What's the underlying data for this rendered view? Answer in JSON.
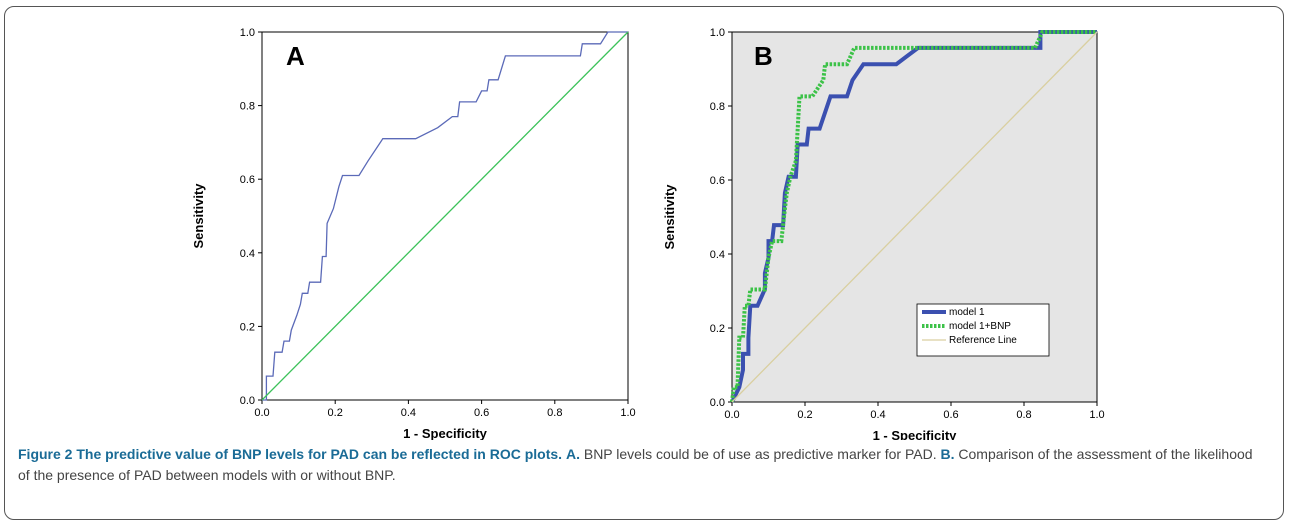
{
  "chart_data": [
    {
      "type": "line",
      "panel_label": "A",
      "xlabel": "1 - Specificity",
      "ylabel": "Sensitivity",
      "xlim": [
        0,
        1
      ],
      "ylim": [
        0,
        1
      ],
      "x_ticks": [
        "0.0",
        "0.2",
        "0.4",
        "0.6",
        "0.8",
        "1.0"
      ],
      "y_ticks": [
        "0.0",
        "0.2",
        "0.4",
        "0.6",
        "0.8",
        "1.0"
      ],
      "background": "#ffffff",
      "series": [
        {
          "color": "#5b6ab8",
          "points": [
            [
              0,
              0
            ],
            [
              0.012,
              0
            ],
            [
              0.012,
              0.065
            ],
            [
              0.03,
              0.065
            ],
            [
              0.035,
              0.13
            ],
            [
              0.055,
              0.13
            ],
            [
              0.06,
              0.16
            ],
            [
              0.075,
              0.16
            ],
            [
              0.08,
              0.19
            ],
            [
              0.095,
              0.23
            ],
            [
              0.105,
              0.26
            ],
            [
              0.11,
              0.29
            ],
            [
              0.125,
              0.29
            ],
            [
              0.13,
              0.32
            ],
            [
              0.16,
              0.32
            ],
            [
              0.165,
              0.39
            ],
            [
              0.175,
              0.39
            ],
            [
              0.178,
              0.48
            ],
            [
              0.195,
              0.52
            ],
            [
              0.21,
              0.58
            ],
            [
              0.22,
              0.61
            ],
            [
              0.265,
              0.61
            ],
            [
              0.29,
              0.65
            ],
            [
              0.33,
              0.71
            ],
            [
              0.42,
              0.71
            ],
            [
              0.48,
              0.74
            ],
            [
              0.52,
              0.77
            ],
            [
              0.535,
              0.77
            ],
            [
              0.54,
              0.81
            ],
            [
              0.585,
              0.81
            ],
            [
              0.6,
              0.84
            ],
            [
              0.615,
              0.84
            ],
            [
              0.62,
              0.87
            ],
            [
              0.645,
              0.87
            ],
            [
              0.665,
              0.935
            ],
            [
              0.87,
              0.935
            ],
            [
              0.875,
              0.968
            ],
            [
              0.925,
              0.968
            ],
            [
              0.945,
              1.0
            ],
            [
              1.0,
              1.0
            ]
          ]
        },
        {
          "color": "#3cc25a",
          "points": [
            [
              0,
              0
            ],
            [
              1,
              1
            ]
          ]
        }
      ]
    },
    {
      "type": "line",
      "panel_label": "B",
      "xlabel": "1 - Specificity",
      "ylabel": "Sensitivity",
      "xlim": [
        0,
        1
      ],
      "ylim": [
        0,
        1
      ],
      "x_ticks": [
        "0.0",
        "0.2",
        "0.4",
        "0.6",
        "0.8",
        "1.0"
      ],
      "y_ticks": [
        "0.0",
        "0.2",
        "0.4",
        "0.6",
        "0.8",
        "1.0"
      ],
      "background": "#e5e5e5",
      "legend_placement": "bottom-right",
      "series": [
        {
          "name": "model 1",
          "color": "#3b50b0",
          "dash": "solid",
          "points": [
            [
              0,
              0
            ],
            [
              0.02,
              0.04
            ],
            [
              0.03,
              0.087
            ],
            [
              0.03,
              0.13
            ],
            [
              0.045,
              0.13
            ],
            [
              0.045,
              0.174
            ],
            [
              0.05,
              0.26
            ],
            [
              0.07,
              0.26
            ],
            [
              0.09,
              0.305
            ],
            [
              0.09,
              0.348
            ],
            [
              0.1,
              0.39
            ],
            [
              0.1,
              0.435
            ],
            [
              0.11,
              0.435
            ],
            [
              0.115,
              0.478
            ],
            [
              0.14,
              0.478
            ],
            [
              0.145,
              0.565
            ],
            [
              0.155,
              0.609
            ],
            [
              0.175,
              0.609
            ],
            [
              0.18,
              0.696
            ],
            [
              0.205,
              0.696
            ],
            [
              0.21,
              0.739
            ],
            [
              0.24,
              0.739
            ],
            [
              0.27,
              0.826
            ],
            [
              0.315,
              0.826
            ],
            [
              0.33,
              0.87
            ],
            [
              0.36,
              0.913
            ],
            [
              0.45,
              0.913
            ],
            [
              0.48,
              0.935
            ],
            [
              0.51,
              0.957
            ],
            [
              0.535,
              0.957
            ],
            [
              0.545,
              0.957
            ],
            [
              0.845,
              0.957
            ],
            [
              0.845,
              1.0
            ],
            [
              1.0,
              1.0
            ]
          ]
        },
        {
          "name": "model 1+BNP",
          "color": "#3cc248",
          "dash": "dotted",
          "points": [
            [
              0,
              0
            ],
            [
              0.005,
              0.04
            ],
            [
              0.015,
              0.04
            ],
            [
              0.02,
              0.174
            ],
            [
              0.03,
              0.174
            ],
            [
              0.035,
              0.26
            ],
            [
              0.045,
              0.26
            ],
            [
              0.05,
              0.304
            ],
            [
              0.09,
              0.304
            ],
            [
              0.1,
              0.39
            ],
            [
              0.11,
              0.435
            ],
            [
              0.125,
              0.435
            ],
            [
              0.135,
              0.435
            ],
            [
              0.14,
              0.478
            ],
            [
              0.145,
              0.522
            ],
            [
              0.15,
              0.565
            ],
            [
              0.16,
              0.609
            ],
            [
              0.175,
              0.652
            ],
            [
              0.185,
              0.826
            ],
            [
              0.21,
              0.826
            ],
            [
              0.22,
              0.826
            ],
            [
              0.25,
              0.87
            ],
            [
              0.255,
              0.913
            ],
            [
              0.315,
              0.913
            ],
            [
              0.335,
              0.957
            ],
            [
              0.54,
              0.957
            ],
            [
              0.83,
              0.957
            ],
            [
              0.84,
              0.978
            ],
            [
              0.85,
              1.0
            ],
            [
              1.0,
              1.0
            ]
          ]
        },
        {
          "name": "Reference Line",
          "color": "#d9cfa0",
          "dash": "solid",
          "points": [
            [
              0,
              0
            ],
            [
              1,
              1
            ]
          ]
        }
      ]
    }
  ],
  "caption": {
    "title": "Figure 2 The predictive value of BNP levels for PAD can be reflected in ROC plots.",
    "a_label": "A.",
    "a_text": "BNP levels could be of use as predictive marker for PAD.",
    "b_label": "B.",
    "b_text": "Comparison of the assessment of the likelihood of the presence of PAD between models with or without BNP."
  }
}
